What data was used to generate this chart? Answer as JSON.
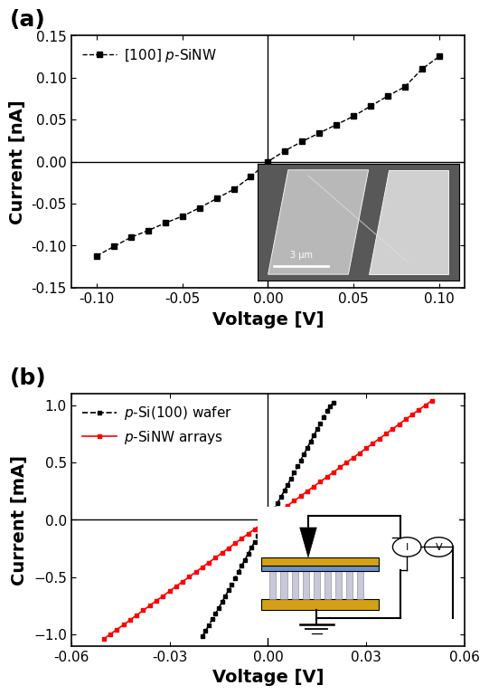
{
  "panel_a": {
    "label": "(a)",
    "xlabel": "Voltage [V]",
    "ylabel": "Current [nA]",
    "xlim": [
      -0.115,
      0.115
    ],
    "ylim": [
      -0.15,
      0.15
    ],
    "xticks": [
      -0.1,
      -0.05,
      0.0,
      0.05,
      0.1
    ],
    "yticks": [
      -0.15,
      -0.1,
      -0.05,
      0.0,
      0.05,
      0.1,
      0.15
    ],
    "legend_label": "[100] $p$-SiNW",
    "line_color": "#000000",
    "marker": "s",
    "marker_size": 4.5,
    "data_x": [
      -0.1,
      -0.09,
      -0.08,
      -0.07,
      -0.06,
      -0.05,
      -0.04,
      -0.03,
      -0.02,
      -0.01,
      0.0,
      0.01,
      0.02,
      0.03,
      0.04,
      0.05,
      0.06,
      0.07,
      0.08,
      0.09,
      0.1
    ],
    "data_y": [
      -0.112,
      -0.101,
      -0.09,
      -0.082,
      -0.073,
      -0.065,
      -0.055,
      -0.044,
      -0.033,
      -0.018,
      0.0,
      0.013,
      0.024,
      0.034,
      0.044,
      0.054,
      0.066,
      0.078,
      0.089,
      0.11,
      0.125
    ]
  },
  "panel_b": {
    "label": "(b)",
    "xlabel": "Voltage [V]",
    "ylabel": "Current [mA]",
    "xlim": [
      -0.06,
      0.06
    ],
    "ylim": [
      -1.1,
      1.1
    ],
    "xticks": [
      -0.06,
      -0.03,
      0.0,
      0.03,
      0.06
    ],
    "yticks": [
      -1.0,
      -0.5,
      0.0,
      0.5,
      1.0
    ],
    "series": [
      {
        "label": "$p$-Si(100) wafer",
        "color": "#000000",
        "marker": "s",
        "marker_size": 3.5,
        "data_x": [
          -0.02,
          -0.019,
          -0.018,
          -0.017,
          -0.016,
          -0.015,
          -0.014,
          -0.013,
          -0.012,
          -0.011,
          -0.01,
          -0.009,
          -0.008,
          -0.007,
          -0.006,
          -0.005,
          -0.004,
          -0.003,
          -0.002,
          -0.001,
          0.0,
          0.001,
          0.002,
          0.003,
          0.004,
          0.005,
          0.006,
          0.007,
          0.008,
          0.009,
          0.01,
          0.011,
          0.012,
          0.013,
          0.014,
          0.015,
          0.016,
          0.017,
          0.018,
          0.019,
          0.02
        ],
        "data_y": [
          -1.02,
          -0.97,
          -0.92,
          -0.87,
          -0.82,
          -0.77,
          -0.72,
          -0.668,
          -0.616,
          -0.564,
          -0.51,
          -0.456,
          -0.402,
          -0.35,
          -0.296,
          -0.242,
          -0.192,
          -0.143,
          -0.095,
          -0.048,
          0.0,
          0.048,
          0.096,
          0.148,
          0.2,
          0.252,
          0.304,
          0.356,
          0.41,
          0.464,
          0.518,
          0.572,
          0.626,
          0.68,
          0.734,
          0.788,
          0.842,
          0.896,
          0.95,
          0.99,
          1.02
        ]
      },
      {
        "label": "$p$-SiNW arrays",
        "color": "#ff0000",
        "marker": "s",
        "marker_size": 3.5,
        "data_x": [
          -0.05,
          -0.048,
          -0.046,
          -0.044,
          -0.042,
          -0.04,
          -0.038,
          -0.036,
          -0.034,
          -0.032,
          -0.03,
          -0.028,
          -0.026,
          -0.024,
          -0.022,
          -0.02,
          -0.018,
          -0.016,
          -0.014,
          -0.012,
          -0.01,
          -0.008,
          -0.006,
          -0.004,
          -0.002,
          0.0,
          0.002,
          0.004,
          0.006,
          0.008,
          0.01,
          0.012,
          0.014,
          0.016,
          0.018,
          0.02,
          0.022,
          0.024,
          0.026,
          0.028,
          0.03,
          0.032,
          0.034,
          0.036,
          0.038,
          0.04,
          0.042,
          0.044,
          0.046,
          0.048,
          0.05
        ],
        "data_y": [
          -1.04,
          -0.998,
          -0.958,
          -0.916,
          -0.875,
          -0.833,
          -0.791,
          -0.749,
          -0.707,
          -0.666,
          -0.624,
          -0.582,
          -0.54,
          -0.499,
          -0.457,
          -0.415,
          -0.373,
          -0.332,
          -0.29,
          -0.248,
          -0.206,
          -0.164,
          -0.123,
          -0.081,
          -0.04,
          0.0,
          0.04,
          0.081,
          0.123,
          0.164,
          0.206,
          0.248,
          0.29,
          0.332,
          0.373,
          0.415,
          0.457,
          0.499,
          0.54,
          0.582,
          0.624,
          0.666,
          0.707,
          0.749,
          0.791,
          0.833,
          0.875,
          0.916,
          0.958,
          0.998,
          1.04
        ]
      }
    ]
  },
  "figure_bg": "#ffffff",
  "axes_bg": "#ffffff",
  "label_fontsize": 14,
  "tick_fontsize": 11,
  "legend_fontsize": 11,
  "panel_label_fontsize": 18
}
